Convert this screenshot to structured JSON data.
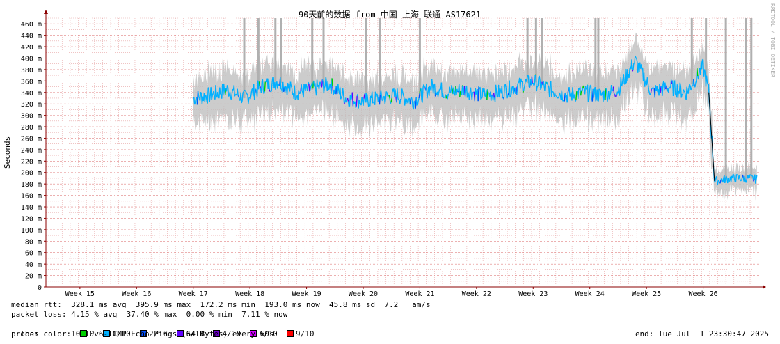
{
  "chart_data": {
    "type": "line",
    "title": "90天前的数据 from 中国 上海 联通 AS17621",
    "ylabel": "Seconds",
    "watermark": "RRDTOOL / TOBI OETIKER",
    "ylim": [
      0,
      470
    ],
    "y_ticks": [
      0,
      20,
      40,
      60,
      80,
      100,
      120,
      140,
      160,
      180,
      200,
      220,
      240,
      260,
      280,
      300,
      320,
      340,
      360,
      380,
      400,
      420,
      440,
      460
    ],
    "y_tick_labels": [
      "0",
      "20 m",
      "40 m",
      "60 m",
      "80 m",
      "100 m",
      "120 m",
      "140 m",
      "160 m",
      "180 m",
      "200 m",
      "220 m",
      "240 m",
      "260 m",
      "280 m",
      "300 m",
      "320 m",
      "340 m",
      "360 m",
      "380 m",
      "400 m",
      "420 m",
      "440 m",
      "460 m"
    ],
    "x_label_unit": "week",
    "xlim": [
      14.4,
      27.0
    ],
    "x_ticks": [
      15,
      16,
      17,
      18,
      19,
      20,
      21,
      22,
      23,
      24,
      25,
      26
    ],
    "x_tick_labels": [
      "Week 15",
      "Week 16",
      "Week 17",
      "Week 18",
      "Week 19",
      "Week 20",
      "Week 21",
      "Week 22",
      "Week 23",
      "Week 24",
      "Week 25",
      "Week 26"
    ],
    "grid": true,
    "series": [
      {
        "role": "median_rtt",
        "x": [
          17.0,
          17.3,
          17.6,
          17.9,
          18.2,
          18.5,
          18.8,
          19.1,
          19.4,
          19.7,
          20.0,
          20.3,
          20.6,
          20.9,
          21.2,
          21.5,
          21.8,
          22.1,
          22.4,
          22.7,
          23.0,
          23.3,
          23.6,
          23.9,
          24.2,
          24.5,
          24.8,
          25.1,
          25.4,
          25.7,
          26.0,
          26.1,
          26.2,
          26.5,
          26.8,
          26.95
        ],
        "y": [
          330,
          335,
          345,
          330,
          350,
          360,
          340,
          345,
          355,
          330,
          325,
          330,
          335,
          325,
          350,
          340,
          345,
          335,
          340,
          350,
          360,
          345,
          335,
          340,
          335,
          345,
          395,
          340,
          350,
          340,
          385,
          340,
          185,
          190,
          190,
          188
        ]
      }
    ]
  },
  "loss_colors": [
    "#00d000",
    "#00b0ff",
    "#0050ff",
    "#6000ff",
    "#7000d0",
    "#d000ff",
    "#ff0000"
  ],
  "smoke_color": "#bfbfbf",
  "grid_color": "#e6a0a0",
  "axis_color": "#8b0000",
  "footer": {
    "median_rtt": "median rtt:  328.1 ms avg  395.9 ms max  172.2 ms min  193.0 ms now  45.8 ms sd  7.2   am/s",
    "packet_loss": "packet loss: 4.15 % avg  37.40 % max  0.00 % min  7.11 % now",
    "loss_color_label": "loss color:",
    "loss_items": [
      "0",
      "1/10",
      "2/10",
      "3/10",
      "4/10",
      "5/10",
      "9/10"
    ],
    "probe": "probe:       10 IPv6-ICMP Echo Pings (64 Bytes) every 60s",
    "end": "end: Tue Jul  1 23:30:47 2025"
  }
}
